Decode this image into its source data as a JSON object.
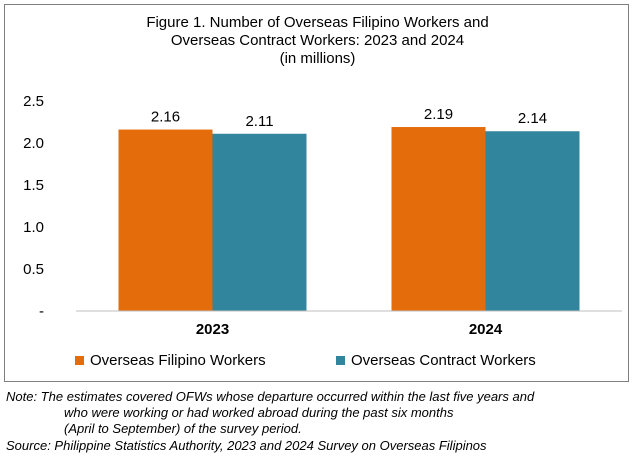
{
  "chart_data": {
    "type": "bar",
    "title_lines": [
      "Figure 1. Number of Overseas Filipino Workers and",
      "Overseas Contract Workers: 2023 and 2024",
      "(in millions)"
    ],
    "categories": [
      "2023",
      "2024"
    ],
    "series": [
      {
        "name": "Overseas Filipino Workers",
        "values": [
          2.16,
          2.19
        ],
        "color": "#E46C0A"
      },
      {
        "name": "Overseas Contract Workers",
        "values": [
          2.11,
          2.14
        ],
        "color": "#31859C"
      }
    ],
    "data_labels": [
      [
        "2.16",
        "2.19"
      ],
      [
        "2.11",
        "2.14"
      ]
    ],
    "y_ticks": [
      {
        "value": 0,
        "label": "-"
      },
      {
        "value": 0.5,
        "label": "0.5"
      },
      {
        "value": 1.0,
        "label": "1.0"
      },
      {
        "value": 1.5,
        "label": "1.5"
      },
      {
        "value": 2.0,
        "label": "2.0"
      },
      {
        "value": 2.5,
        "label": "2.5"
      }
    ],
    "ylim": [
      0,
      2.5
    ],
    "grid": false,
    "legend_position": "bottom"
  },
  "notes": {
    "note_line1": "Note: The estimates covered OFWs whose departure occurred within the last five years and",
    "note_line2": "who were working or had worked abroad during the past six months",
    "note_line3": "(April to September) of the survey period.",
    "source": "Source: Philippine Statistics Authority, 2023 and 2024 Survey on Overseas Filipinos"
  }
}
